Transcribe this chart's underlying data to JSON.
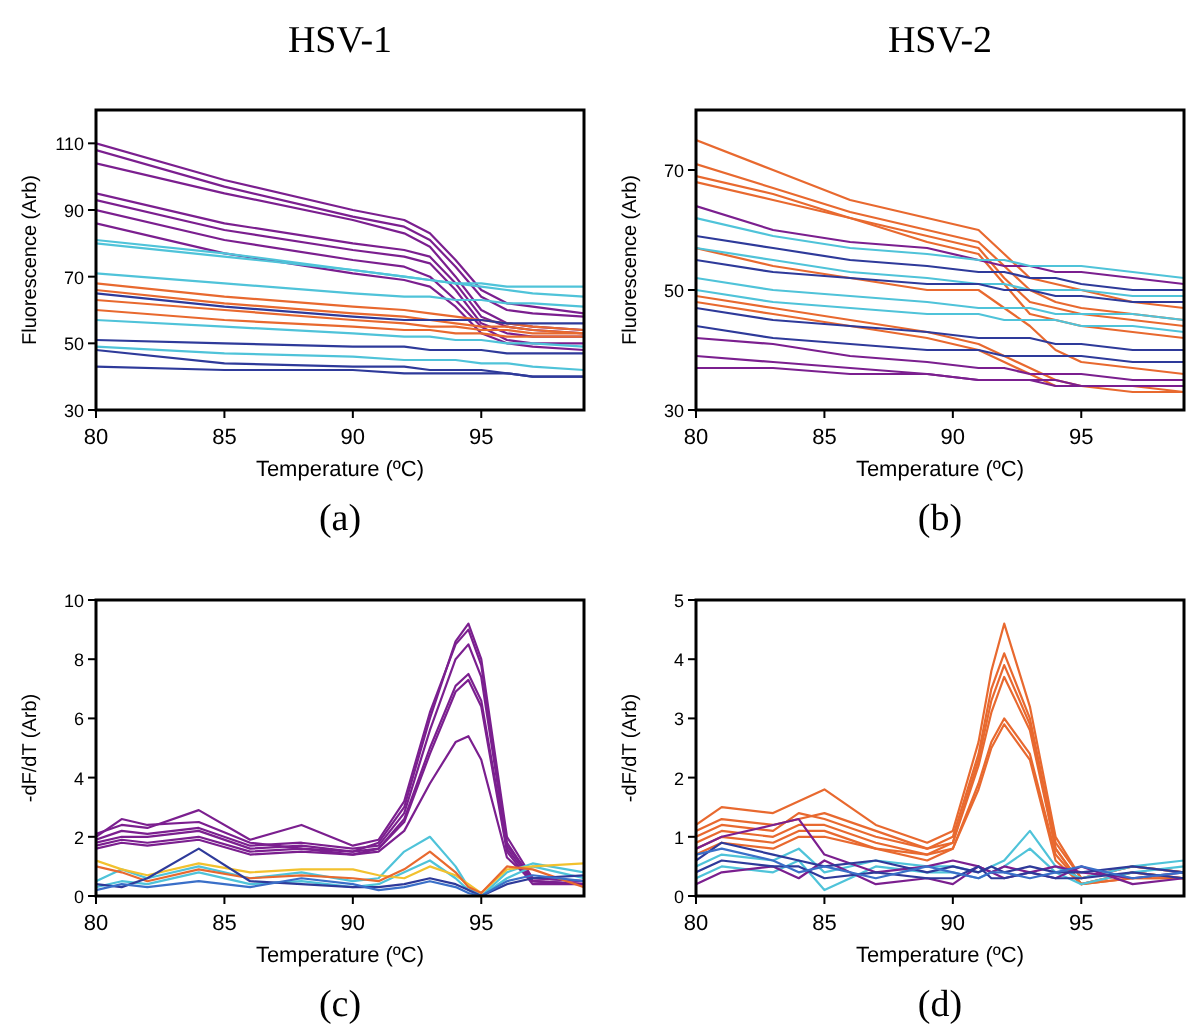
{
  "chart_data": [
    {
      "type": "line",
      "title": "HSV-1",
      "xlabel": "Temperature (ºC)",
      "ylabel": "Fluorescence (Arb)",
      "annotations": [
        "(a)"
      ],
      "xlim": [
        80,
        99
      ],
      "xticks": [
        80,
        85,
        90,
        95
      ],
      "ylim": [
        30,
        120
      ],
      "yticks": [
        30,
        50,
        70,
        90,
        110
      ],
      "x": [
        80,
        85,
        90,
        92,
        93,
        94,
        95,
        96,
        97,
        99
      ],
      "series": [
        {
          "color": "#7b1f8f",
          "values": [
            110,
            99,
            90,
            87,
            83,
            75,
            66,
            62,
            61,
            59
          ]
        },
        {
          "color": "#7b1f8f",
          "values": [
            108,
            97,
            88,
            85,
            81,
            73,
            64,
            60,
            59,
            58
          ]
        },
        {
          "color": "#7b1f8f",
          "values": [
            104,
            95,
            87,
            83,
            79,
            70,
            60,
            56,
            55,
            54
          ]
        },
        {
          "color": "#7b1f8f",
          "values": [
            95,
            86,
            80,
            78,
            76,
            68,
            58,
            55,
            54,
            53
          ]
        },
        {
          "color": "#7b1f8f",
          "values": [
            93,
            84,
            78,
            76,
            74,
            66,
            56,
            53,
            52,
            52
          ]
        },
        {
          "color": "#7b1f8f",
          "values": [
            90,
            81,
            75,
            73,
            70,
            63,
            55,
            51,
            50,
            50
          ]
        },
        {
          "color": "#7b1f8f",
          "values": [
            86,
            77,
            71,
            69,
            67,
            61,
            53,
            50,
            49,
            48
          ]
        },
        {
          "color": "#4fc3d9",
          "values": [
            81,
            77,
            72,
            70,
            69,
            68,
            68,
            67,
            67,
            67
          ]
        },
        {
          "color": "#4fc3d9",
          "values": [
            80,
            76,
            72,
            70,
            69,
            68,
            67,
            66,
            65,
            64
          ]
        },
        {
          "color": "#4fc3d9",
          "values": [
            71,
            68,
            65,
            64,
            64,
            63,
            63,
            62,
            62,
            61
          ]
        },
        {
          "color": "#4fc3d9",
          "values": [
            57,
            55,
            53,
            52,
            52,
            51,
            51,
            50,
            50,
            49
          ]
        },
        {
          "color": "#4fc3d9",
          "values": [
            49,
            47,
            46,
            45,
            45,
            45,
            44,
            44,
            43,
            42
          ]
        },
        {
          "color": "#e8692f",
          "values": [
            68,
            64,
            61,
            60,
            59,
            58,
            57,
            56,
            55,
            54
          ]
        },
        {
          "color": "#e8692f",
          "values": [
            66,
            62,
            59,
            58,
            57,
            56,
            55,
            55,
            54,
            53
          ]
        },
        {
          "color": "#e8692f",
          "values": [
            63,
            60,
            57,
            56,
            55,
            55,
            54,
            54,
            53,
            53
          ]
        },
        {
          "color": "#e8692f",
          "values": [
            60,
            57,
            55,
            54,
            54,
            53,
            53,
            52,
            52,
            52
          ]
        },
        {
          "color": "#2e3a9a",
          "values": [
            65,
            61,
            58,
            57,
            57,
            57,
            57,
            56,
            56,
            56
          ]
        },
        {
          "color": "#2e3a9a",
          "values": [
            51,
            50,
            49,
            49,
            48,
            48,
            48,
            47,
            47,
            47
          ]
        },
        {
          "color": "#2e3a9a",
          "values": [
            48,
            44,
            43,
            43,
            42,
            42,
            42,
            41,
            40,
            40
          ]
        },
        {
          "color": "#2e3a9a",
          "values": [
            43,
            42,
            42,
            41,
            41,
            41,
            41,
            41,
            40,
            40
          ]
        }
      ]
    },
    {
      "type": "line",
      "title": "HSV-2",
      "xlabel": "Temperature (ºC)",
      "ylabel": "Fluorescence (Arb)",
      "annotations": [
        "(b)"
      ],
      "xlim": [
        80,
        99
      ],
      "xticks": [
        80,
        85,
        90,
        95
      ],
      "ylim": [
        30,
        80
      ],
      "yticks": [
        30,
        50,
        70
      ],
      "x": [
        80,
        83,
        86,
        89,
        91,
        92,
        93,
        94,
        95,
        97,
        99
      ],
      "series": [
        {
          "color": "#e8692f",
          "values": [
            75,
            70,
            65,
            62,
            60,
            56,
            52,
            51,
            50,
            48,
            47
          ]
        },
        {
          "color": "#e8692f",
          "values": [
            71,
            67,
            63,
            60,
            58,
            54,
            50,
            48,
            47,
            46,
            45
          ]
        },
        {
          "color": "#e8692f",
          "values": [
            69,
            66,
            62,
            59,
            57,
            52,
            48,
            47,
            46,
            45,
            44
          ]
        },
        {
          "color": "#e8692f",
          "values": [
            68,
            65,
            62,
            58,
            56,
            51,
            46,
            45,
            44,
            43,
            42
          ]
        },
        {
          "color": "#e8692f",
          "values": [
            49,
            47,
            45,
            43,
            41,
            39,
            37,
            35,
            34,
            34,
            33
          ]
        },
        {
          "color": "#e8692f",
          "values": [
            48,
            46,
            44,
            42,
            40,
            38,
            36,
            34,
            34,
            33,
            33
          ]
        },
        {
          "color": "#e8692f",
          "values": [
            57,
            54,
            52,
            50,
            50,
            47,
            44,
            40,
            38,
            37,
            36
          ]
        },
        {
          "color": "#7b1f8f",
          "values": [
            64,
            60,
            58,
            57,
            55,
            54,
            54,
            53,
            53,
            52,
            51
          ]
        },
        {
          "color": "#7b1f8f",
          "values": [
            42,
            41,
            39,
            38,
            37,
            37,
            36,
            36,
            36,
            35,
            35
          ]
        },
        {
          "color": "#7b1f8f",
          "values": [
            39,
            38,
            37,
            36,
            35,
            35,
            35,
            34,
            34,
            34,
            34
          ]
        },
        {
          "color": "#7b1f8f",
          "values": [
            37,
            37,
            36,
            36,
            35,
            35,
            35,
            35,
            34,
            34,
            34
          ]
        },
        {
          "color": "#4fc3d9",
          "values": [
            62,
            59,
            57,
            56,
            55,
            55,
            54,
            54,
            54,
            53,
            52
          ]
        },
        {
          "color": "#4fc3d9",
          "values": [
            57,
            55,
            53,
            52,
            51,
            51,
            50,
            50,
            50,
            49,
            49
          ]
        },
        {
          "color": "#4fc3d9",
          "values": [
            52,
            50,
            49,
            48,
            47,
            47,
            47,
            46,
            46,
            46,
            45
          ]
        },
        {
          "color": "#4fc3d9",
          "values": [
            50,
            48,
            47,
            46,
            46,
            45,
            45,
            45,
            44,
            44,
            43
          ]
        },
        {
          "color": "#2e3a9a",
          "values": [
            59,
            57,
            55,
            54,
            53,
            53,
            52,
            52,
            51,
            50,
            50
          ]
        },
        {
          "color": "#2e3a9a",
          "values": [
            55,
            53,
            52,
            51,
            51,
            50,
            50,
            49,
            49,
            48,
            48
          ]
        },
        {
          "color": "#2e3a9a",
          "values": [
            47,
            45,
            44,
            43,
            42,
            42,
            42,
            41,
            41,
            40,
            40
          ]
        },
        {
          "color": "#2e3a9a",
          "values": [
            44,
            42,
            41,
            40,
            40,
            39,
            39,
            39,
            39,
            38,
            38
          ]
        }
      ]
    },
    {
      "type": "line",
      "xlabel": "Temperature (ºC)",
      "ylabel": "-dF/dT (Arb)",
      "annotations": [
        "(c)"
      ],
      "xlim": [
        80,
        99
      ],
      "xticks": [
        80,
        85,
        90,
        95
      ],
      "ylim": [
        0,
        10
      ],
      "yticks": [
        0,
        2,
        4,
        6,
        8,
        10
      ],
      "x": [
        80,
        81,
        82,
        84,
        86,
        88,
        90,
        91,
        92,
        93,
        94,
        94.5,
        95,
        96,
        97,
        99
      ],
      "series": [
        {
          "color": "#7b1f8f",
          "values": [
            2.0,
            2.6,
            2.4,
            2.5,
            1.8,
            1.6,
            1.5,
            1.8,
            3.0,
            6.0,
            8.6,
            9.2,
            8.0,
            2.0,
            0.6,
            0.5
          ]
        },
        {
          "color": "#7b1f8f",
          "values": [
            2.1,
            2.4,
            2.3,
            2.9,
            1.9,
            2.4,
            1.7,
            1.9,
            3.2,
            6.2,
            8.5,
            9.0,
            7.8,
            1.8,
            0.5,
            0.4
          ]
        },
        {
          "color": "#7b1f8f",
          "values": [
            1.9,
            2.2,
            2.1,
            2.3,
            1.7,
            1.8,
            1.6,
            1.7,
            2.8,
            5.6,
            8.0,
            8.5,
            7.4,
            1.7,
            0.6,
            0.5
          ]
        },
        {
          "color": "#7b1f8f",
          "values": [
            1.8,
            2.0,
            2.0,
            2.2,
            1.6,
            1.7,
            1.5,
            1.6,
            2.6,
            5.0,
            7.1,
            7.5,
            6.6,
            1.6,
            0.5,
            0.4
          ]
        },
        {
          "color": "#7b1f8f",
          "values": [
            1.7,
            1.9,
            1.8,
            2.0,
            1.5,
            1.6,
            1.4,
            1.6,
            2.5,
            4.8,
            6.9,
            7.3,
            6.4,
            1.5,
            0.4,
            0.4
          ]
        },
        {
          "color": "#7b1f8f",
          "values": [
            1.6,
            1.8,
            1.7,
            1.9,
            1.4,
            1.5,
            1.4,
            1.5,
            2.2,
            3.8,
            5.2,
            5.4,
            4.6,
            1.3,
            0.5,
            0.4
          ]
        },
        {
          "color": "#4fc3d9",
          "values": [
            0.5,
            0.9,
            0.6,
            1.0,
            0.6,
            0.8,
            0.5,
            0.6,
            1.5,
            2.0,
            1.0,
            0.3,
            0.0,
            0.8,
            1.1,
            0.8
          ]
        },
        {
          "color": "#4fc3d9",
          "values": [
            0.3,
            0.5,
            0.4,
            0.8,
            0.4,
            0.5,
            0.3,
            0.4,
            0.8,
            1.2,
            0.6,
            0.2,
            0.0,
            0.6,
            1.0,
            0.6
          ]
        },
        {
          "color": "#f2c12e",
          "values": [
            1.2,
            0.9,
            0.7,
            1.1,
            0.8,
            0.9,
            0.9,
            0.7,
            0.6,
            1.0,
            0.7,
            0.4,
            0.1,
            0.9,
            1.0,
            1.1
          ]
        },
        {
          "color": "#e8692f",
          "values": [
            1.0,
            0.8,
            0.5,
            0.9,
            0.6,
            0.7,
            0.6,
            0.5,
            0.9,
            1.5,
            0.8,
            0.3,
            0.1,
            1.0,
            0.9,
            0.3
          ]
        },
        {
          "color": "#2e3a9a",
          "values": [
            0.4,
            0.3,
            0.6,
            1.6,
            0.5,
            0.4,
            0.3,
            0.3,
            0.4,
            0.6,
            0.4,
            0.2,
            0.0,
            0.4,
            0.6,
            0.7
          ]
        },
        {
          "color": "#3a6fc8",
          "values": [
            0.2,
            0.4,
            0.3,
            0.5,
            0.3,
            0.6,
            0.4,
            0.2,
            0.3,
            0.5,
            0.3,
            0.1,
            0.0,
            0.5,
            0.7,
            0.5
          ]
        }
      ]
    },
    {
      "type": "line",
      "xlabel": "Temperature (ºC)",
      "ylabel": "-dF/dT (Arb)",
      "annotations": [
        "(d)"
      ],
      "xlim": [
        80,
        99
      ],
      "xticks": [
        80,
        85,
        90,
        95
      ],
      "ylim": [
        0,
        5
      ],
      "yticks": [
        0,
        1,
        2,
        3,
        4,
        5
      ],
      "x": [
        80,
        81,
        83,
        84,
        85,
        87,
        89,
        90,
        91,
        91.5,
        92,
        93,
        94,
        95,
        97,
        99
      ],
      "series": [
        {
          "color": "#e8692f",
          "values": [
            1.2,
            1.5,
            1.4,
            1.6,
            1.8,
            1.2,
            0.9,
            1.1,
            2.6,
            3.8,
            4.6,
            3.2,
            1.0,
            0.3,
            0.5,
            0.4
          ]
        },
        {
          "color": "#e8692f",
          "values": [
            1.1,
            1.3,
            1.2,
            1.3,
            1.4,
            1.1,
            0.8,
            1.0,
            2.4,
            3.5,
            4.1,
            3.0,
            0.9,
            0.3,
            0.5,
            0.4
          ]
        },
        {
          "color": "#e8692f",
          "values": [
            1.0,
            1.2,
            1.1,
            1.4,
            1.3,
            1.0,
            0.8,
            0.9,
            2.3,
            3.3,
            3.9,
            2.9,
            0.8,
            0.2,
            0.4,
            0.3
          ]
        },
        {
          "color": "#e8692f",
          "values": [
            0.9,
            1.1,
            1.0,
            1.2,
            1.2,
            0.9,
            0.7,
            0.9,
            2.2,
            3.1,
            3.7,
            2.8,
            0.8,
            0.2,
            0.4,
            0.3
          ]
        },
        {
          "color": "#e8692f",
          "values": [
            0.8,
            1.0,
            0.9,
            1.1,
            1.1,
            0.8,
            0.7,
            0.8,
            1.9,
            2.6,
            3.0,
            2.4,
            0.7,
            0.2,
            0.3,
            0.3
          ]
        },
        {
          "color": "#e8692f",
          "values": [
            0.7,
            0.9,
            0.8,
            1.0,
            1.0,
            0.8,
            0.6,
            0.8,
            1.8,
            2.5,
            2.9,
            2.3,
            0.6,
            0.2,
            0.3,
            0.3
          ]
        },
        {
          "color": "#4fc3d9",
          "values": [
            0.5,
            0.7,
            0.6,
            0.8,
            0.4,
            0.6,
            0.5,
            0.5,
            0.4,
            0.5,
            0.6,
            1.1,
            0.5,
            0.3,
            0.5,
            0.6
          ]
        },
        {
          "color": "#4fc3d9",
          "values": [
            0.3,
            0.5,
            0.4,
            0.6,
            0.1,
            0.5,
            0.4,
            0.4,
            0.3,
            0.4,
            0.5,
            0.8,
            0.4,
            0.2,
            0.4,
            0.5
          ]
        },
        {
          "color": "#7b1f8f",
          "values": [
            0.8,
            1.0,
            1.2,
            1.3,
            0.7,
            0.4,
            0.5,
            0.6,
            0.5,
            0.4,
            0.5,
            0.4,
            0.5,
            0.4,
            0.3,
            0.4
          ]
        },
        {
          "color": "#7b1f8f",
          "values": [
            0.2,
            0.4,
            0.5,
            0.3,
            0.6,
            0.2,
            0.3,
            0.2,
            0.5,
            0.4,
            0.3,
            0.4,
            0.3,
            0.5,
            0.2,
            0.3
          ]
        },
        {
          "color": "#2e3a9a",
          "values": [
            0.6,
            0.9,
            0.7,
            0.6,
            0.5,
            0.6,
            0.4,
            0.5,
            0.4,
            0.5,
            0.4,
            0.5,
            0.4,
            0.4,
            0.5,
            0.4
          ]
        },
        {
          "color": "#2e3a9a",
          "values": [
            0.4,
            0.6,
            0.5,
            0.5,
            0.3,
            0.4,
            0.3,
            0.3,
            0.5,
            0.3,
            0.3,
            0.4,
            0.3,
            0.3,
            0.4,
            0.3
          ]
        },
        {
          "color": "#3a6fc8",
          "values": [
            0.7,
            0.8,
            0.6,
            0.4,
            0.5,
            0.3,
            0.5,
            0.4,
            0.3,
            0.4,
            0.4,
            0.3,
            0.4,
            0.5,
            0.3,
            0.4
          ]
        }
      ]
    }
  ]
}
